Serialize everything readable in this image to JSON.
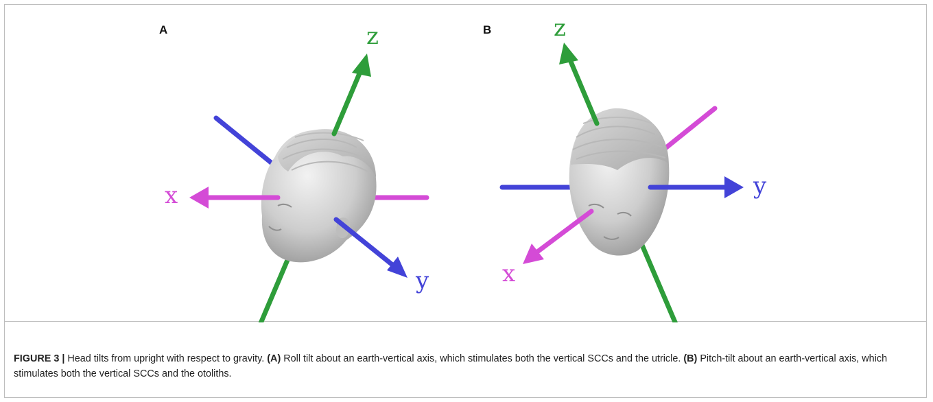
{
  "panels": [
    {
      "label": "A",
      "axes": {
        "z": "z",
        "x": "x",
        "y": "y"
      }
    },
    {
      "label": "B",
      "axes": {
        "z": "z",
        "x": "x",
        "y": "y"
      }
    }
  ],
  "colors": {
    "z_axis": "#2e9d3a",
    "x_axis": "#d44bd6",
    "y_axis": "#4343d8",
    "head": "#cfcfcf",
    "border": "#bdbdbd"
  },
  "caption": {
    "figure_label": "FIGURE 3 |",
    "intro": " Head tilts from upright with respect to gravity. ",
    "a_label": "(A)",
    "a_text": " Roll tilt about an earth-vertical axis, which stimulates both the vertical SCCs and the utricle. ",
    "b_label": "(B)",
    "b_text": " Pitch-tilt about an earth-vertical axis, which stimulates both the vertical SCCs and the otoliths."
  }
}
